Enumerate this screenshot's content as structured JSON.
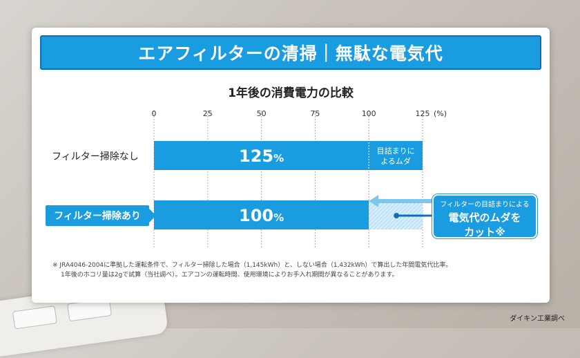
{
  "header": {
    "title": "エアフィルターの清掃｜無駄な電気代"
  },
  "chart_data": {
    "type": "bar",
    "orientation": "horizontal",
    "title": "1年後の消費電力の比較",
    "unit_label": "(%)",
    "xlim": [
      0,
      125
    ],
    "xticks": [
      0,
      25,
      50,
      75,
      100,
      125
    ],
    "categories": [
      "フィルター掃除なし",
      "フィルター掃除あり"
    ],
    "values": [
      125,
      100
    ],
    "value_labels": [
      "125",
      "100"
    ],
    "value_suffix": "%",
    "segment_annotation": {
      "from": 100,
      "to": 125,
      "text_line1": "目詰まりに",
      "text_line2": "よるムダ"
    },
    "highlighted_category": "フィルター掃除あり"
  },
  "callout": {
    "line1": "フィルターの目詰まりによる",
    "line2": "電気代のムダを",
    "line3": "カット※"
  },
  "footnote": {
    "line1": "※ JRA4046-2004に準拠した運転条件で、フィルター掃除した場合（1,145kWh）と、しない場合（1,432kWh）で算出した年間電気代比率。",
    "line2": "1年後のホコリ量は2gで試算（当社調べ）。エアコンの運転時間、使用環境によりお手入れ期間が異なることがあります。"
  },
  "source": "ダイキン工業調べ",
  "colors": {
    "bar": "#1a9ce0",
    "bar_dark": "#0e6fb2",
    "waste_hatch": "#bfe3f7",
    "arrow": "#7cc6ee"
  }
}
